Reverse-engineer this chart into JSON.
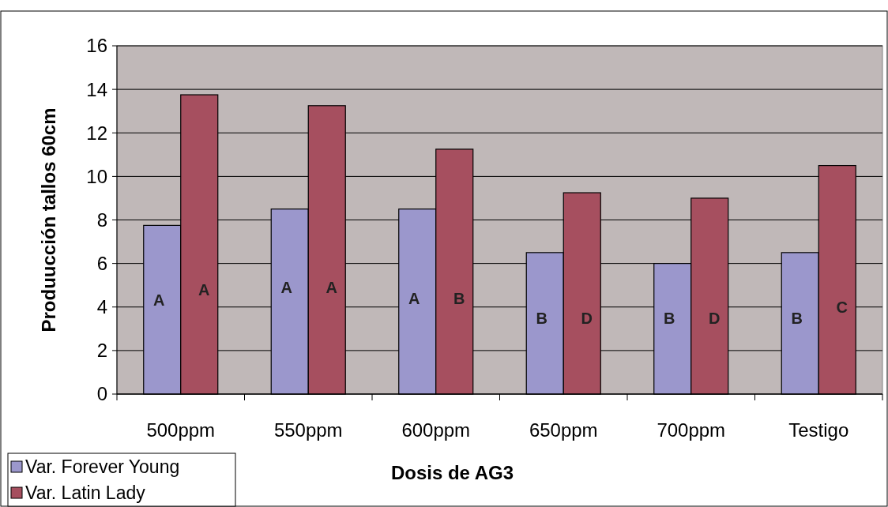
{
  "chart_data": {
    "type": "bar",
    "xlabel": "Dosis de AG3",
    "ylabel": "Produucción tallos 60cm",
    "categories": [
      "500ppm",
      "550ppm",
      "600ppm",
      "650ppm",
      "700ppm",
      "Testigo"
    ],
    "series": [
      {
        "name": "Var. Forever Young",
        "color": "#9b97cc",
        "values": [
          7.75,
          8.5,
          8.5,
          6.5,
          6,
          6.5
        ]
      },
      {
        "name": "Var. Latin Lady",
        "color": "#a64f5f",
        "values": [
          13.75,
          13.25,
          11.25,
          9.25,
          9,
          10.5
        ]
      }
    ],
    "ylim": [
      0,
      16
    ],
    "yticks": [
      0,
      2,
      4,
      6,
      8,
      10,
      12,
      14,
      16
    ],
    "grid": "y",
    "legend": "bottom left",
    "annotations": [
      {
        "text": "A",
        "x": "500ppm",
        "y": 4.3
      },
      {
        "text": "A",
        "x": "500ppm",
        "y": 4.8
      },
      {
        "text": "A",
        "x": "550ppm",
        "y": 4.9
      },
      {
        "text": "A",
        "x": "550ppm",
        "y": 4.9
      },
      {
        "text": "A",
        "x": "600ppm",
        "y": 4.4
      },
      {
        "text": "B",
        "x": "600ppm",
        "y": 4.4
      },
      {
        "text": "B",
        "x": "650ppm",
        "y": 3.5
      },
      {
        "text": "D",
        "x": "650ppm",
        "y": 3.5
      },
      {
        "text": "B",
        "x": "700ppm",
        "y": 3.5
      },
      {
        "text": "D",
        "x": "700ppm",
        "y": 3.5
      },
      {
        "text": "B",
        "x": "Testigo",
        "y": 3.5
      },
      {
        "text": "C",
        "x": "Testigo",
        "y": 4.0
      }
    ]
  }
}
